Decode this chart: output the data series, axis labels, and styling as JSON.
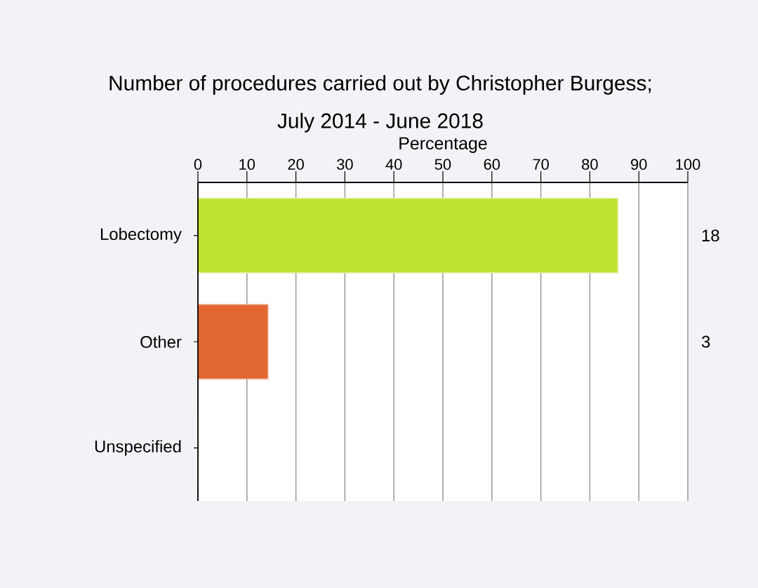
{
  "chart_data": {
    "type": "bar",
    "orientation": "horizontal",
    "title": "Number of procedures carried out by Christopher Burgess; July 2014 - June 2018",
    "xlabel": "Percentage",
    "categories": [
      "Lobectomy",
      "Other",
      "Unspecified"
    ],
    "values": [
      85.7,
      14.3,
      0
    ],
    "colors": [
      "#bde22f",
      "#e26730",
      "#d8d84a"
    ],
    "annotations": [
      "18",
      "3"
    ],
    "xlim": [
      0,
      100
    ],
    "xticks": [
      0,
      10,
      20,
      30,
      40,
      50,
      60,
      70,
      80,
      90,
      100
    ],
    "grid": "x"
  }
}
